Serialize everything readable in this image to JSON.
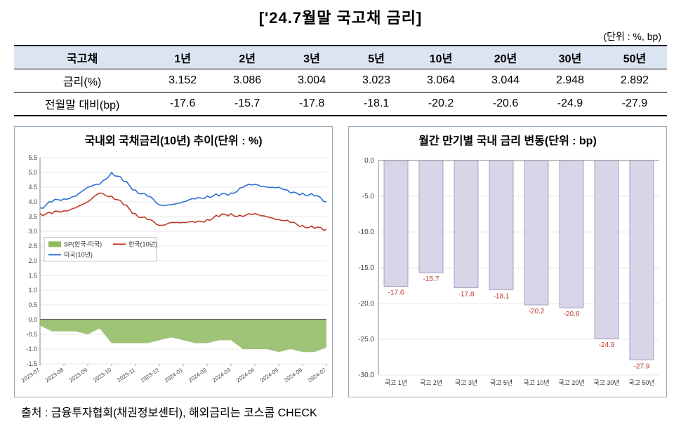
{
  "title": "['24.7월말 국고채 금리]",
  "unit_label": "(단위 : %, bp)",
  "table": {
    "headers": [
      "국고채",
      "1년",
      "2년",
      "3년",
      "5년",
      "10년",
      "20년",
      "30년",
      "50년"
    ],
    "rows": [
      [
        "금리(%)",
        "3.152",
        "3.086",
        "3.004",
        "3.023",
        "3.064",
        "3.044",
        "2.948",
        "2.892"
      ],
      [
        "전월말 대비(bp)",
        "-17.6",
        "-15.7",
        "-17.8",
        "-18.1",
        "-20.2",
        "-20.6",
        "-24.9",
        "-27.9"
      ]
    ],
    "header_bg": "#dbe5f1"
  },
  "line_chart": {
    "title": "국내외 국채금리(10년) 추이(단위 : %)",
    "type": "line_area",
    "ylim": [
      -1.5,
      5.5
    ],
    "yticks": [
      -1.5,
      -1.0,
      -0.5,
      0.0,
      0.5,
      1.0,
      1.5,
      2.0,
      2.5,
      3.0,
      3.5,
      4.0,
      4.5,
      5.0,
      5.5
    ],
    "x_labels": [
      "2023-07",
      "2023-08",
      "2023-09",
      "2023-10",
      "2023-11",
      "2023-12",
      "2024-01",
      "2024-02",
      "2024-03",
      "2024-04",
      "2024-05",
      "2024-06",
      "2024-07"
    ],
    "grid_color": "#d0d0d0",
    "axis_color": "#666666",
    "baseline_color": "#000000",
    "legend": [
      {
        "label": "SP(한국-미국)",
        "color": "#8fba5f",
        "type": "area"
      },
      {
        "label": "한국(10년)",
        "color": "#c0392b",
        "type": "line"
      },
      {
        "label": "미국(10년)",
        "color": "#2e6fd1",
        "type": "line"
      }
    ],
    "series_korea": [
      3.6,
      3.6,
      3.7,
      3.8,
      4.0,
      4.3,
      4.2,
      3.9,
      3.6,
      3.4,
      3.2,
      3.3,
      3.3,
      3.3,
      3.4,
      3.5,
      3.6,
      3.5,
      3.6,
      3.5,
      3.4,
      3.3,
      3.2,
      3.1,
      3.06
    ],
    "series_us": [
      3.8,
      4.0,
      4.1,
      4.2,
      4.5,
      4.6,
      5.0,
      4.7,
      4.4,
      4.2,
      3.9,
      3.9,
      4.0,
      4.1,
      4.2,
      4.2,
      4.3,
      4.5,
      4.6,
      4.5,
      4.5,
      4.3,
      4.3,
      4.2,
      4.0
    ],
    "series_sp": [
      -0.2,
      -0.4,
      -0.4,
      -0.4,
      -0.5,
      -0.3,
      -0.8,
      -0.8,
      -0.8,
      -0.8,
      -0.7,
      -0.6,
      -0.7,
      -0.8,
      -0.8,
      -0.7,
      -0.7,
      -1.0,
      -1.0,
      -1.0,
      -1.1,
      -1.0,
      -1.1,
      -1.1,
      -0.94
    ],
    "label_fontsize": 9
  },
  "bar_chart": {
    "title": "월간 만기별 국내 금리 변동(단위 : bp)",
    "type": "bar",
    "categories": [
      "국고 1년",
      "국고 2년",
      "국고 3년",
      "국고 5년",
      "국고 10년",
      "국고 20년",
      "국고 30년",
      "국고 50년"
    ],
    "values": [
      -17.6,
      -15.7,
      -17.8,
      -18.1,
      -20.2,
      -20.6,
      -24.9,
      -27.9
    ],
    "ylim": [
      -30,
      0
    ],
    "yticks": [
      0.0,
      -5.0,
      -10.0,
      -15.0,
      -20.0,
      -25.0,
      -30.0
    ],
    "bar_fill": "#d9d4e7",
    "bar_stroke": "#9a8fb8",
    "label_color": "#c0392b",
    "grid_color": "#d0d0d0",
    "axis_color": "#666666",
    "label_fontsize": 10
  },
  "source": "출처 : 금융투자협회(채권정보센터), 해외금리는 코스콤 CHECK"
}
